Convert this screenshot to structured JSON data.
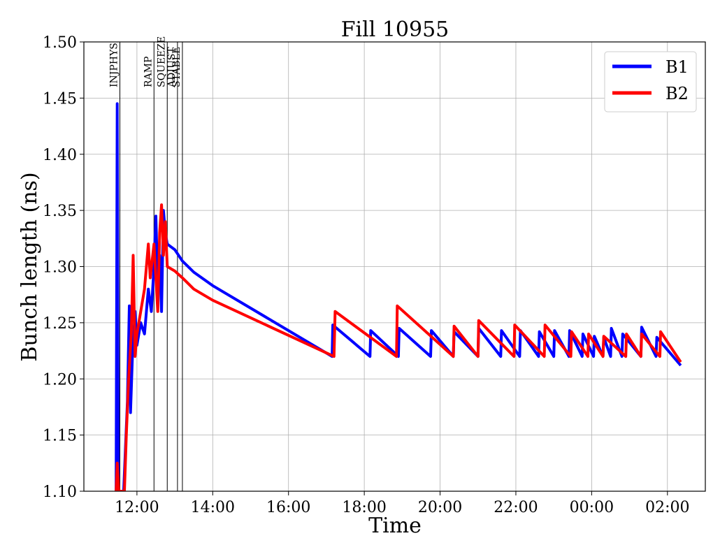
{
  "chart_data": {
    "type": "line",
    "title": "Fill 10955",
    "xlabel": "Time",
    "ylabel": "Bunch length (ns)",
    "xlim_hours": [
      10.6,
      27.0
    ],
    "ylim": [
      1.1,
      1.5
    ],
    "x_ticks": [
      {
        "t": 12,
        "label": "12:00"
      },
      {
        "t": 14,
        "label": "14:00"
      },
      {
        "t": 16,
        "label": "16:00"
      },
      {
        "t": 18,
        "label": "18:00"
      },
      {
        "t": 20,
        "label": "20:00"
      },
      {
        "t": 22,
        "label": "22:00"
      },
      {
        "t": 24,
        "label": "00:00"
      },
      {
        "t": 26,
        "label": "02:00"
      }
    ],
    "y_ticks": [
      1.1,
      1.15,
      1.2,
      1.25,
      1.3,
      1.35,
      1.4,
      1.45,
      1.5
    ],
    "grid": true,
    "legend_position": "top-right",
    "phases": [
      {
        "label": "INJPHYS",
        "t": 11.55
      },
      {
        "label": "RAMP",
        "t": 12.45
      },
      {
        "label": "SQUEEZE",
        "t": 12.8
      },
      {
        "label": "ADJUST",
        "t": 13.07
      },
      {
        "label": "STABLE",
        "t": 13.2
      }
    ],
    "series": [
      {
        "name": "B1",
        "color": "#0000ff",
        "points": [
          [
            11.45,
            1.1
          ],
          [
            11.48,
            1.445
          ],
          [
            11.51,
            1.1
          ],
          [
            11.6,
            1.1
          ],
          [
            11.65,
            1.1
          ],
          [
            11.7,
            1.14
          ],
          [
            11.75,
            1.18
          ],
          [
            11.8,
            1.265
          ],
          [
            11.83,
            1.17
          ],
          [
            11.88,
            1.22
          ],
          [
            11.95,
            1.26
          ],
          [
            12.0,
            1.23
          ],
          [
            12.1,
            1.25
          ],
          [
            12.2,
            1.24
          ],
          [
            12.3,
            1.28
          ],
          [
            12.38,
            1.26
          ],
          [
            12.45,
            1.3
          ],
          [
            12.5,
            1.345
          ],
          [
            12.55,
            1.28
          ],
          [
            12.6,
            1.31
          ],
          [
            12.65,
            1.26
          ],
          [
            12.7,
            1.35
          ],
          [
            12.75,
            1.33
          ],
          [
            12.8,
            1.32
          ],
          [
            13.0,
            1.315
          ],
          [
            13.2,
            1.305
          ],
          [
            13.5,
            1.295
          ],
          [
            14.0,
            1.283
          ],
          [
            17.15,
            1.22
          ],
          [
            17.17,
            1.248
          ],
          [
            18.15,
            1.22
          ],
          [
            18.17,
            1.243
          ],
          [
            18.9,
            1.22
          ],
          [
            18.92,
            1.245
          ],
          [
            19.75,
            1.22
          ],
          [
            19.77,
            1.243
          ],
          [
            20.35,
            1.22
          ],
          [
            20.37,
            1.242
          ],
          [
            21.0,
            1.22
          ],
          [
            21.02,
            1.245
          ],
          [
            21.6,
            1.22
          ],
          [
            21.62,
            1.243
          ],
          [
            22.1,
            1.22
          ],
          [
            22.12,
            1.243
          ],
          [
            22.6,
            1.22
          ],
          [
            22.62,
            1.242
          ],
          [
            23.0,
            1.22
          ],
          [
            23.02,
            1.243
          ],
          [
            23.4,
            1.22
          ],
          [
            23.42,
            1.243
          ],
          [
            23.75,
            1.22
          ],
          [
            23.77,
            1.24
          ],
          [
            24.05,
            1.22
          ],
          [
            24.07,
            1.238
          ],
          [
            24.3,
            1.22
          ],
          [
            24.32,
            1.237
          ],
          [
            24.5,
            1.22
          ],
          [
            24.52,
            1.245
          ],
          [
            24.8,
            1.22
          ],
          [
            24.82,
            1.24
          ],
          [
            25.3,
            1.22
          ],
          [
            25.32,
            1.246
          ],
          [
            25.7,
            1.22
          ],
          [
            25.72,
            1.237
          ],
          [
            26.35,
            1.212
          ]
        ]
      },
      {
        "name": "B2",
        "color": "#ff0000",
        "points": [
          [
            11.45,
            1.1
          ],
          [
            11.48,
            1.125
          ],
          [
            11.52,
            1.1
          ],
          [
            11.6,
            1.1
          ],
          [
            11.67,
            1.1
          ],
          [
            11.72,
            1.15
          ],
          [
            11.78,
            1.2
          ],
          [
            11.85,
            1.24
          ],
          [
            11.9,
            1.31
          ],
          [
            11.95,
            1.22
          ],
          [
            12.0,
            1.24
          ],
          [
            12.1,
            1.26
          ],
          [
            12.2,
            1.28
          ],
          [
            12.3,
            1.32
          ],
          [
            12.35,
            1.29
          ],
          [
            12.45,
            1.32
          ],
          [
            12.55,
            1.26
          ],
          [
            12.6,
            1.33
          ],
          [
            12.65,
            1.355
          ],
          [
            12.7,
            1.31
          ],
          [
            12.75,
            1.34
          ],
          [
            12.8,
            1.3
          ],
          [
            13.0,
            1.296
          ],
          [
            13.2,
            1.29
          ],
          [
            13.5,
            1.28
          ],
          [
            14.0,
            1.27
          ],
          [
            17.2,
            1.22
          ],
          [
            17.23,
            1.26
          ],
          [
            18.85,
            1.22
          ],
          [
            18.87,
            1.265
          ],
          [
            20.35,
            1.22
          ],
          [
            20.37,
            1.247
          ],
          [
            21.0,
            1.22
          ],
          [
            21.02,
            1.252
          ],
          [
            21.95,
            1.22
          ],
          [
            21.97,
            1.248
          ],
          [
            22.75,
            1.22
          ],
          [
            22.77,
            1.248
          ],
          [
            23.45,
            1.22
          ],
          [
            23.47,
            1.242
          ],
          [
            23.9,
            1.22
          ],
          [
            23.92,
            1.24
          ],
          [
            24.3,
            1.22
          ],
          [
            24.32,
            1.238
          ],
          [
            24.9,
            1.22
          ],
          [
            24.92,
            1.24
          ],
          [
            25.3,
            1.22
          ],
          [
            25.32,
            1.24
          ],
          [
            25.8,
            1.22
          ],
          [
            25.82,
            1.242
          ],
          [
            26.35,
            1.215
          ]
        ]
      }
    ]
  }
}
